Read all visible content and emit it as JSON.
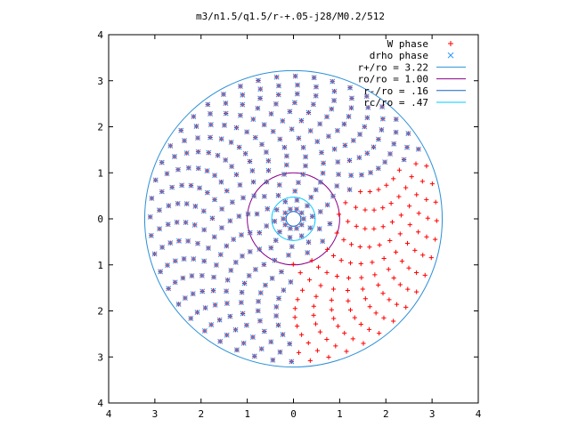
{
  "chart_data": {
    "type": "scatter",
    "title": "m3/n1.5/q1.5/r-+.05-j28/M0.2/512",
    "xlabel": "",
    "ylabel": "",
    "xlim": [
      -4,
      4
    ],
    "ylim": [
      -4,
      4
    ],
    "x_ticks": [
      -4,
      -3,
      -2,
      -1,
      0,
      1,
      2,
      3,
      4
    ],
    "x_tick_labels": [
      "4",
      "3",
      "2",
      "1",
      "0",
      "1",
      "2",
      "3",
      "4"
    ],
    "y_ticks": [
      4,
      3,
      2,
      1,
      0,
      -1,
      -2,
      -3,
      -4
    ],
    "y_tick_labels": [
      "4",
      "3",
      "2",
      "1",
      "0",
      "1",
      "2",
      "3",
      "4"
    ],
    "grid": false,
    "legend_position": "top-right",
    "series": [
      {
        "name": "W phase",
        "kind": "points",
        "marker": "plus",
        "color": "#ff0000",
        "description": "phase of W on a polar grid; r from about 0.2 to 3.1, 16 rings, 48 spokes",
        "r_range": [
          0.22,
          3.1
        ],
        "rings": 16,
        "spokes": 48
      },
      {
        "name": "drho phase",
        "kind": "points",
        "marker": "cross",
        "color": "#1e90ff",
        "r_range": [
          0.22,
          3.1
        ]
      },
      {
        "name": "r+/ro = 3.22",
        "kind": "circle",
        "radius": 3.22,
        "color": "#2a8fd6"
      },
      {
        "name": "ro/ro = 1.00",
        "kind": "circle",
        "radius": 1.0,
        "color": "#8b008b"
      },
      {
        "name": "r-/ro = .16",
        "kind": "circle",
        "radius": 0.16,
        "color": "#1565c0"
      },
      {
        "name": "rc/ro = .47",
        "kind": "circle",
        "radius": 0.47,
        "color": "#00c8ff"
      }
    ]
  }
}
